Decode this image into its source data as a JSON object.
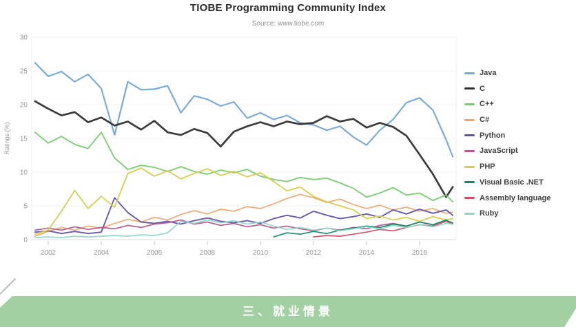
{
  "title": "TIOBE Programming Community Index",
  "subtitle": "Source: www.tiobe.com",
  "banner": {
    "text": "三、就业情景",
    "background": "#a3d0a2",
    "text_color": "#fdfefd"
  },
  "decor": {
    "corner_line_color": "#b6c0c6"
  },
  "chart_data": {
    "type": "line",
    "title": "TIOBE Programming Community Index",
    "subtitle": "Source: www.tiobe.com",
    "xlabel": "",
    "ylabel": "Ratings (%)",
    "grid": true,
    "legend_position": "right",
    "x_axis": {
      "range": [
        2001.4,
        2017.35
      ],
      "ticks": [
        2002,
        2004,
        2006,
        2008,
        2010,
        2012,
        2014,
        2016
      ]
    },
    "y_axis": {
      "range": [
        0,
        30
      ],
      "ticks": [
        0,
        5,
        10,
        15,
        20,
        25,
        30
      ]
    },
    "x": [
      2001.5,
      2002,
      2002.5,
      2003,
      2003.5,
      2004,
      2004.5,
      2005,
      2005.5,
      2006,
      2006.5,
      2007,
      2007.5,
      2008,
      2008.5,
      2009,
      2009.5,
      2010,
      2010.5,
      2011,
      2011.5,
      2012,
      2012.5,
      2013,
      2013.5,
      2014,
      2014.5,
      2015,
      2015.5,
      2016,
      2016.5,
      2017,
      2017.25
    ],
    "series": [
      {
        "name": "Java",
        "color": "#74a7d4",
        "width": 2.2,
        "values": [
          26.2,
          24.2,
          24.9,
          23.4,
          24.5,
          22.4,
          15.5,
          23.4,
          22.2,
          22.3,
          22.8,
          18.8,
          21.3,
          20.8,
          19.8,
          20.4,
          18.0,
          18.8,
          17.8,
          18.4,
          17.3,
          17.0,
          16.2,
          16.8,
          15.2,
          14.0,
          16.2,
          17.8,
          20.3,
          21.0,
          19.2,
          14.8,
          12.3
        ]
      },
      {
        "name": "C",
        "color": "#303030",
        "width": 2.7,
        "values": [
          20.5,
          19.4,
          18.4,
          18.9,
          17.4,
          18.1,
          16.9,
          17.5,
          16.3,
          17.6,
          15.9,
          15.5,
          16.4,
          15.8,
          13.8,
          16.0,
          16.8,
          17.4,
          16.8,
          17.5,
          17.1,
          17.3,
          18.3,
          17.5,
          17.9,
          16.6,
          17.3,
          16.7,
          15.4,
          12.6,
          9.7,
          6.3,
          7.8
        ]
      },
      {
        "name": "C++",
        "color": "#77cb70",
        "width": 1.9,
        "values": [
          15.9,
          14.3,
          15.3,
          14.1,
          13.5,
          15.9,
          12.1,
          10.4,
          11.0,
          10.7,
          10.1,
          10.8,
          10.1,
          9.7,
          10.3,
          9.9,
          10.4,
          9.4,
          8.9,
          8.6,
          9.2,
          8.9,
          9.1,
          8.4,
          7.6,
          6.3,
          6.9,
          7.7,
          6.6,
          6.9,
          5.8,
          6.6,
          5.6
        ]
      },
      {
        "name": "C#",
        "color": "#efa46e",
        "width": 1.7,
        "values": [
          0.5,
          1.2,
          1.8,
          1.4,
          2.0,
          1.7,
          2.4,
          3.0,
          2.6,
          3.3,
          2.9,
          3.7,
          4.3,
          3.8,
          4.5,
          4.2,
          4.9,
          4.6,
          5.3,
          6.1,
          6.7,
          6.2,
          5.5,
          6.0,
          5.2,
          4.6,
          5.1,
          4.4,
          4.8,
          4.2,
          4.6,
          3.9,
          4.1
        ]
      },
      {
        "name": "Python",
        "color": "#5f51a7",
        "width": 1.9,
        "values": [
          1.1,
          1.3,
          0.9,
          1.2,
          0.9,
          1.1,
          6.2,
          4.0,
          2.6,
          2.4,
          2.7,
          2.3,
          2.8,
          3.2,
          2.7,
          2.5,
          2.8,
          2.4,
          3.1,
          3.6,
          3.2,
          4.2,
          3.6,
          3.1,
          3.4,
          3.8,
          3.3,
          4.4,
          3.8,
          4.5,
          3.9,
          4.4,
          3.6
        ]
      },
      {
        "name": "JavaScript",
        "color": "#b2548a",
        "width": 1.7,
        "values": [
          1.4,
          1.7,
          1.4,
          1.9,
          1.5,
          1.8,
          1.6,
          2.1,
          1.8,
          2.3,
          2.5,
          2.9,
          2.3,
          2.6,
          2.1,
          2.4,
          1.9,
          2.2,
          1.7,
          2.0,
          1.6,
          1.3,
          1.7,
          1.4,
          1.8,
          1.6,
          2.1,
          2.4,
          2.0,
          2.6,
          2.2,
          2.8,
          2.5
        ]
      },
      {
        "name": "PHP",
        "color": "#d6cc50",
        "width": 1.9,
        "values": [
          0.8,
          1.4,
          4.2,
          7.3,
          4.6,
          6.4,
          4.8,
          9.8,
          10.6,
          9.4,
          10.2,
          9.0,
          9.8,
          10.5,
          9.5,
          10.1,
          9.3,
          9.9,
          8.6,
          7.2,
          7.8,
          6.4,
          5.6,
          5.0,
          4.4,
          3.1,
          3.5,
          2.9,
          3.3,
          2.7,
          3.4,
          2.9,
          3.1
        ]
      },
      {
        "name": "Visual Basic .NET",
        "color": "#11886b",
        "width": 1.7,
        "values": [
          null,
          null,
          null,
          null,
          null,
          null,
          null,
          null,
          null,
          null,
          null,
          null,
          null,
          null,
          null,
          null,
          null,
          null,
          0.4,
          1.0,
          0.8,
          1.2,
          0.9,
          1.4,
          1.7,
          2.0,
          1.8,
          2.3,
          2.0,
          2.6,
          2.2,
          2.9,
          2.4
        ]
      },
      {
        "name": "Assembly language",
        "color": "#cb4e65",
        "width": 1.7,
        "values": [
          null,
          null,
          null,
          null,
          null,
          null,
          null,
          null,
          null,
          null,
          null,
          null,
          null,
          null,
          null,
          null,
          null,
          null,
          null,
          null,
          null,
          0.4,
          0.6,
          0.5,
          0.8,
          1.1,
          1.5,
          1.3,
          1.8,
          2.2,
          2.0,
          2.7,
          2.3
        ]
      },
      {
        "name": "Ruby",
        "color": "#90d5c8",
        "width": 1.7,
        "values": [
          0.3,
          0.4,
          0.3,
          0.5,
          0.4,
          0.5,
          0.6,
          0.5,
          0.7,
          0.6,
          1.0,
          2.7,
          2.4,
          2.9,
          2.5,
          2.8,
          2.3,
          2.6,
          2.0,
          1.5,
          1.8,
          1.4,
          1.7,
          1.3,
          1.6,
          1.9,
          1.6,
          2.1,
          1.8,
          2.2,
          1.9,
          2.4,
          2.3
        ]
      }
    ]
  }
}
